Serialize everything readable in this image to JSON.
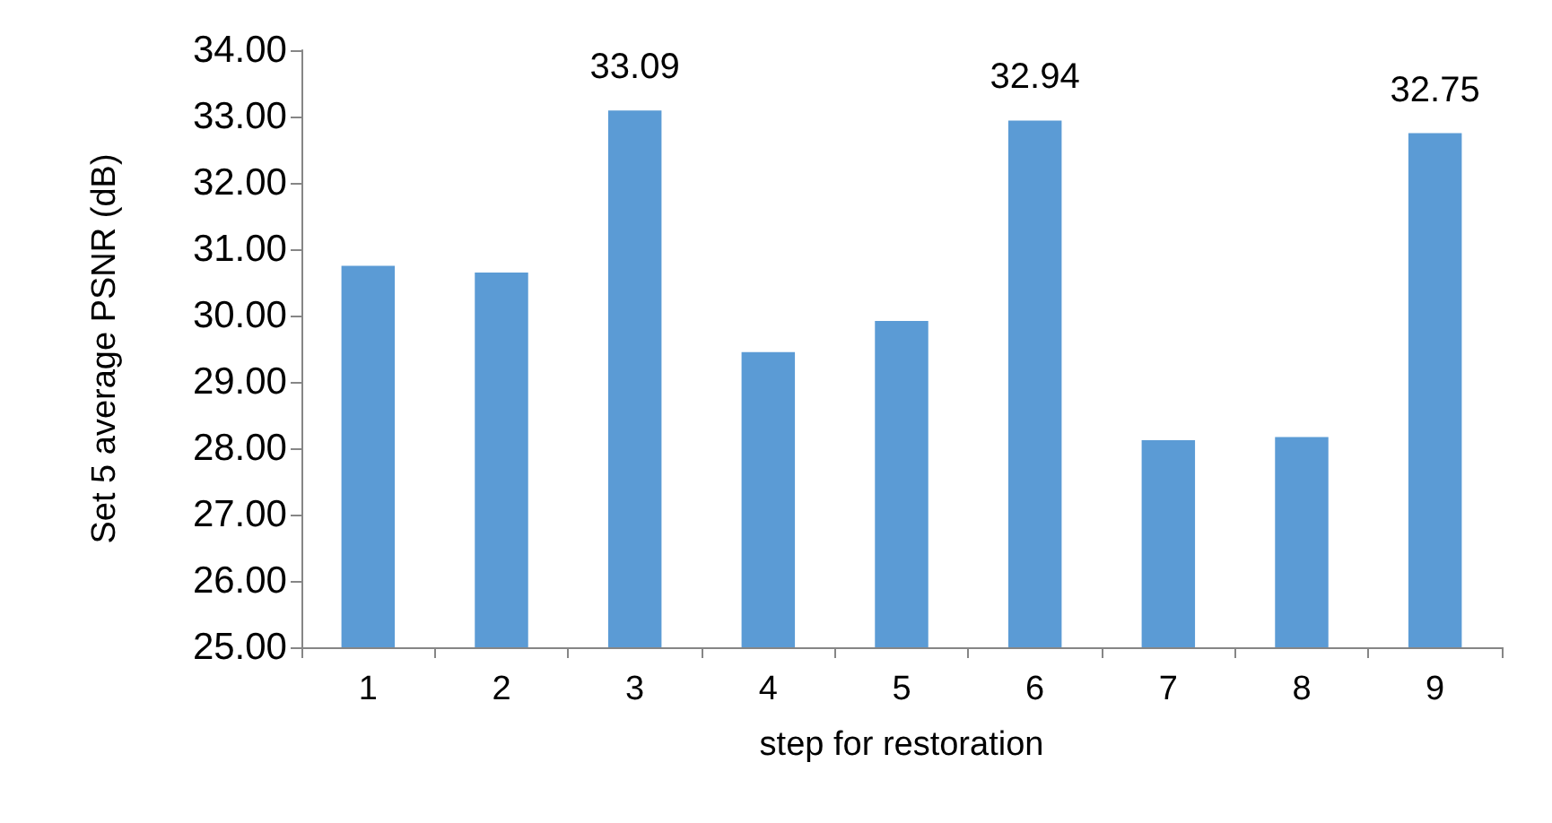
{
  "chart_data": {
    "type": "bar",
    "xlabel": "step for restoration",
    "ylabel": "Set 5 average PSNR (dB)",
    "categories": [
      "1",
      "2",
      "3",
      "4",
      "5",
      "6",
      "7",
      "8",
      "9"
    ],
    "values": [
      30.75,
      30.65,
      33.09,
      29.45,
      29.92,
      32.94,
      28.12,
      28.17,
      32.75
    ],
    "value_labels": [
      null,
      null,
      "33.09",
      null,
      null,
      "32.94",
      null,
      null,
      "32.75"
    ],
    "color": "#5b9bd5",
    "ylim": [
      25,
      34
    ],
    "yticks": [
      {
        "value": 25,
        "label": "25.00"
      },
      {
        "value": 26,
        "label": "26.00"
      },
      {
        "value": 27,
        "label": "27.00"
      },
      {
        "value": 28,
        "label": "28.00"
      },
      {
        "value": 29,
        "label": "29.00"
      },
      {
        "value": 30,
        "label": "30.00"
      },
      {
        "value": 31,
        "label": "31.00"
      },
      {
        "value": 32,
        "label": "32.00"
      },
      {
        "value": 33,
        "label": "33.00"
      },
      {
        "value": 34,
        "label": "34.00"
      }
    ],
    "grid": false
  }
}
